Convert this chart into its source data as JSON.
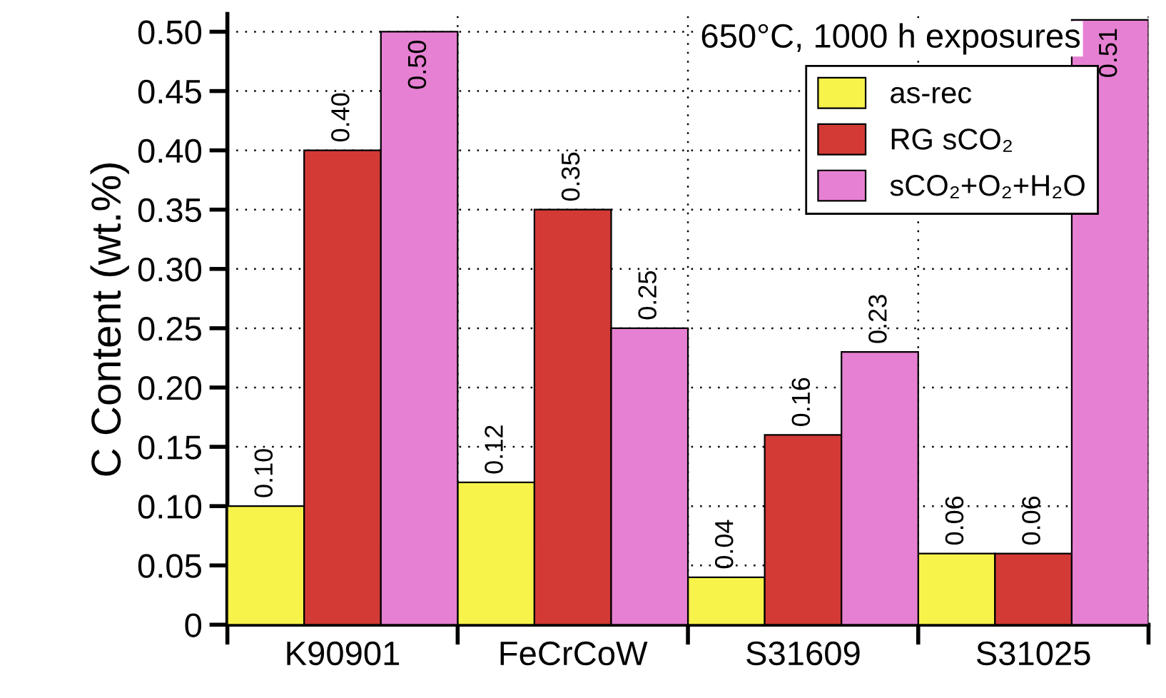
{
  "chart_data": {
    "type": "bar",
    "ylabel": "C Content (wt.%)",
    "categories": [
      "K90901",
      "FeCrCoW",
      "S31609",
      "S31025"
    ],
    "series": [
      {
        "name": "as-rec",
        "color": "#f7f34a",
        "values": [
          0.1,
          0.12,
          0.04,
          0.06
        ],
        "value_labels": [
          "0.10",
          "0.12",
          "0.04",
          "0.06"
        ]
      },
      {
        "name": "RG sCO₂",
        "color": "#d33a35",
        "values": [
          0.4,
          0.35,
          0.16,
          0.06
        ],
        "value_labels": [
          "0.40",
          "0.35",
          "0.16",
          "0.06"
        ]
      },
      {
        "name": "sCO₂+O₂+H₂O",
        "color": "#e680d2",
        "values": [
          0.5,
          0.25,
          0.23,
          0.51
        ],
        "value_labels": [
          "0.50",
          "0.25",
          "0.23",
          "0.51"
        ]
      }
    ],
    "ylim": [
      0,
      0.515
    ],
    "yticks": [
      0,
      {
        "value": 0.05,
        "label": "0.05"
      },
      {
        "value": 0.1,
        "label": "0.10"
      },
      {
        "value": 0.15,
        "label": "0.15"
      },
      {
        "value": 0.2,
        "label": "0.20"
      },
      {
        "value": 0.25,
        "label": "0.25"
      },
      {
        "value": 0.3,
        "label": "0.30"
      },
      {
        "value": 0.35,
        "label": "0.35"
      },
      {
        "value": 0.4,
        "label": "0.40"
      },
      {
        "value": 0.45,
        "label": "0.45"
      },
      {
        "value": 0.5,
        "label": "0.50"
      }
    ],
    "annotations": [
      "650°C, 1000 h exposures"
    ],
    "grid": true,
    "legend": "top right"
  }
}
